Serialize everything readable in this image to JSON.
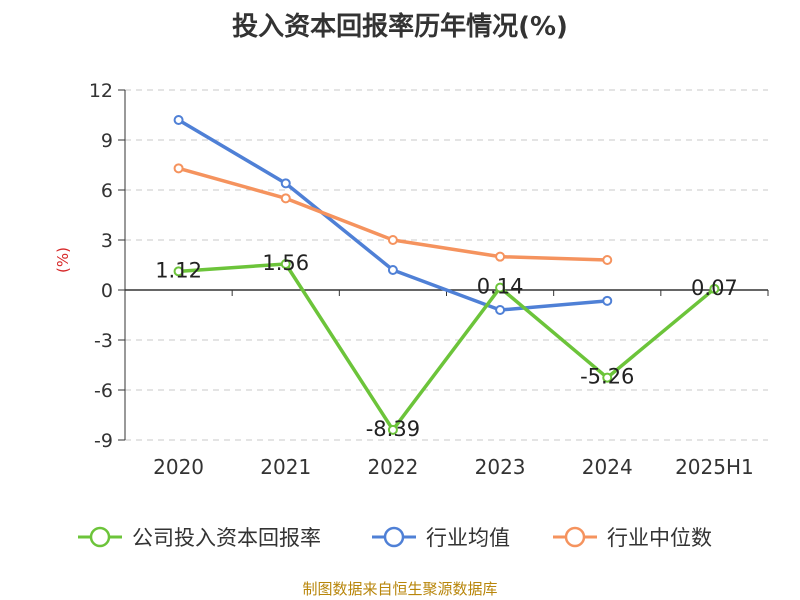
{
  "chart_data": {
    "type": "line",
    "title": "投入资本回报率历年情况(%)",
    "ylabel": "(%)",
    "xlabel": "",
    "categories": [
      "2020",
      "2021",
      "2022",
      "2023",
      "2024",
      "2025H1"
    ],
    "ylim": [
      -9,
      12
    ],
    "yticks": [
      "12",
      "9",
      "6",
      "3",
      "0",
      "-3",
      "-6",
      "-9"
    ],
    "grid": "horizontal dashed",
    "legend_position": "bottom",
    "series": [
      {
        "name": "公司投入资本回报率",
        "color": "#6cc43a",
        "values": [
          1.12,
          1.56,
          -8.39,
          0.14,
          -5.26,
          0.07
        ],
        "labels": [
          "1.12",
          "1.56",
          "-8.39",
          "0.14",
          "-5.26",
          "0.07"
        ]
      },
      {
        "name": "行业均值",
        "color": "#4f80d6",
        "values": [
          10.2,
          6.4,
          1.2,
          -1.2,
          -0.65,
          null
        ]
      },
      {
        "name": "行业中位数",
        "color": "#f5935e",
        "values": [
          7.3,
          5.5,
          3.0,
          2.0,
          1.8,
          null
        ]
      }
    ]
  },
  "source_text": "制图数据来自恒生聚源数据库"
}
